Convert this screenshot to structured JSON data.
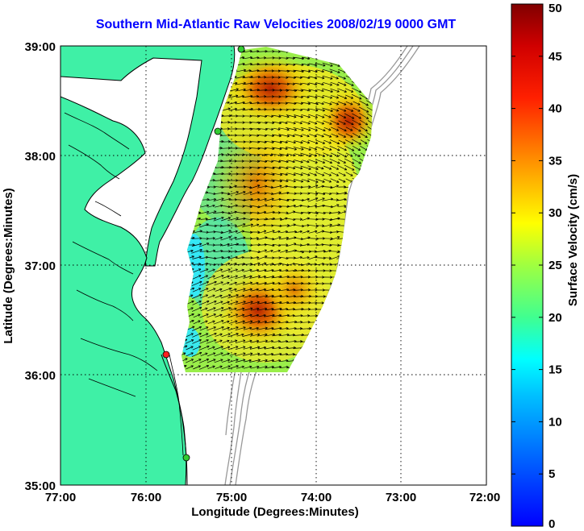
{
  "title": "Southern Mid-Atlantic Raw Velocities 2008/02/19 0000 GMT",
  "chart_data": {
    "type": "heatmap",
    "xlabel": "Longitude (Degrees:Minutes)",
    "ylabel": "Latitude (Degrees:Minutes)",
    "x_ticks": [
      -77,
      -76,
      -75,
      -74,
      -73,
      -72
    ],
    "x_tick_labels": [
      "77:00",
      "76:00",
      "75:00",
      "74:00",
      "73:00",
      "72:00"
    ],
    "y_ticks": [
      35,
      36,
      37,
      38,
      39
    ],
    "y_tick_labels": [
      "35:00",
      "36:00",
      "37:00",
      "38:00",
      "39:00"
    ],
    "xlim": [
      -77,
      -72
    ],
    "ylim": [
      35,
      39
    ],
    "grid": true,
    "colorbar": {
      "label": "Surface Velocity (cm/s)",
      "range": [
        0,
        50
      ],
      "ticks": [
        0,
        5,
        10,
        15,
        20,
        25,
        30,
        35,
        40,
        45,
        50
      ],
      "colormap": "jet"
    },
    "speed_maxima": [
      {
        "lon": -74.9,
        "lat": 38.7,
        "speed": 38
      },
      {
        "lon": -73.7,
        "lat": 38.35,
        "speed": 40
      },
      {
        "lon": -74.75,
        "lat": 37.7,
        "speed": 33
      },
      {
        "lon": -74.95,
        "lat": 36.6,
        "speed": 40
      },
      {
        "lon": -74.2,
        "lat": 36.8,
        "speed": 27
      }
    ],
    "stations": [
      {
        "lon": -74.9,
        "lat": 38.97,
        "color": "#33cc33"
      },
      {
        "lon": -75.15,
        "lat": 38.23,
        "color": "#33cc33"
      },
      {
        "lon": -75.76,
        "lat": 36.18,
        "color": "#ff2020"
      },
      {
        "lon": -75.5,
        "lat": 35.27,
        "color": "#33cc33"
      }
    ],
    "land_color": "#3ff0a6",
    "coast_color": "#000000",
    "bathymetry_color": "#999999"
  }
}
